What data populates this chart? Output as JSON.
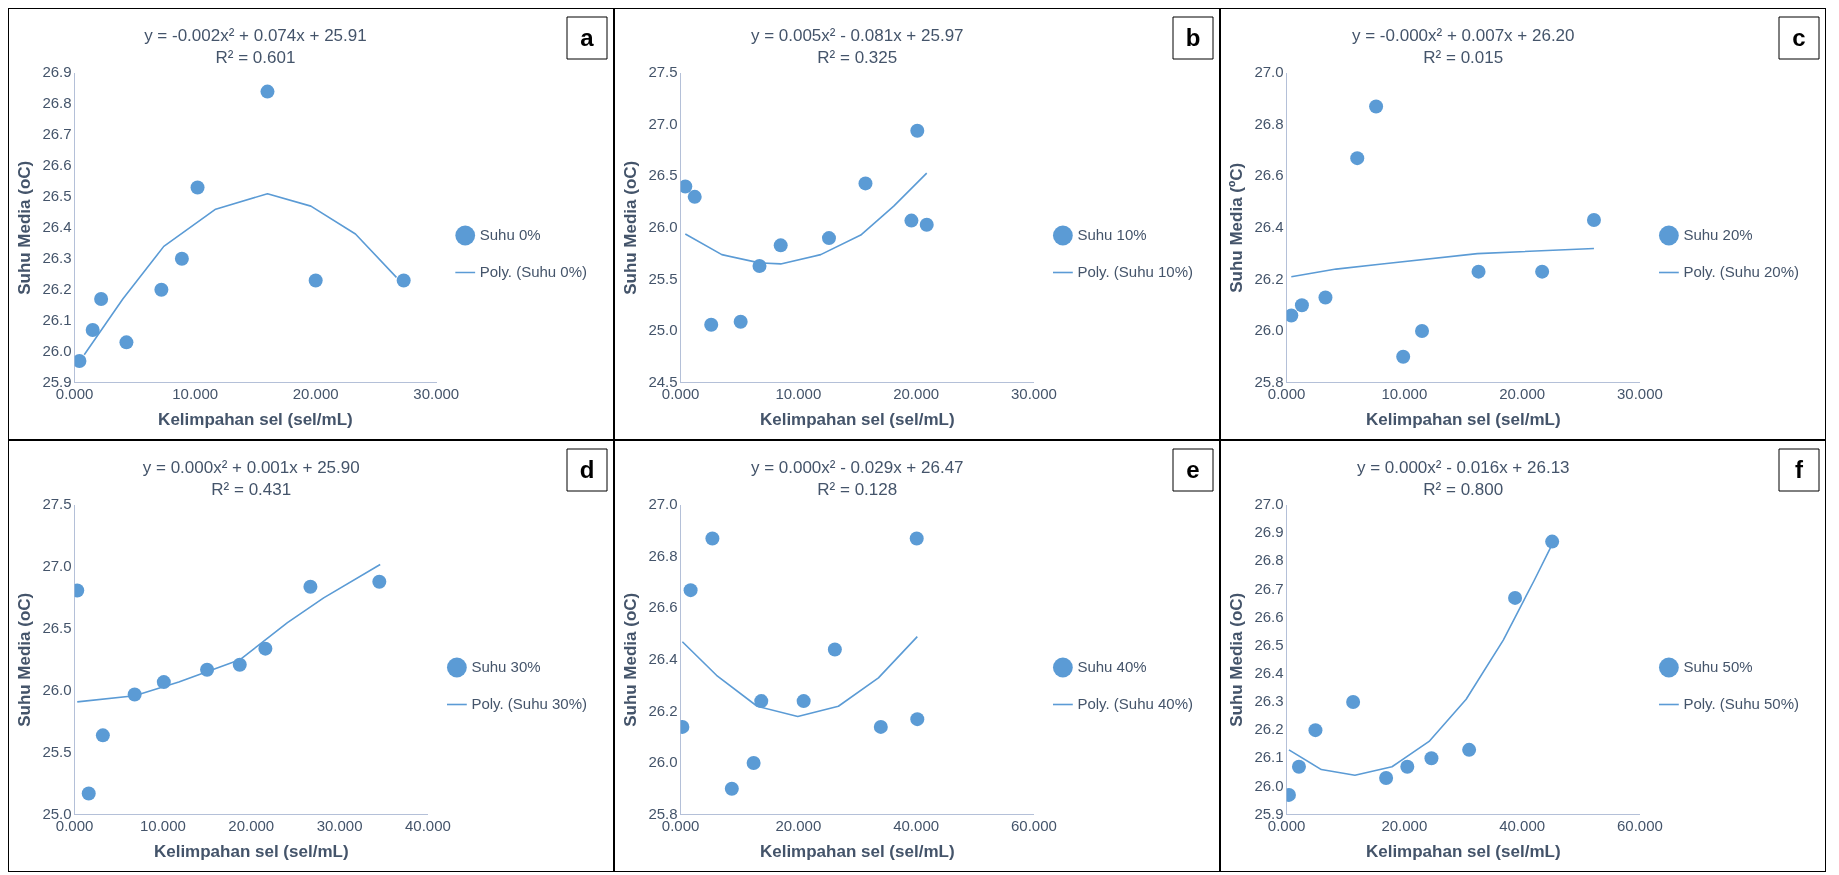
{
  "chart_data": [
    {
      "type": "scatter",
      "xlabel": "Kelimpahan sel (sel/mL)",
      "ylabel": "Suhu Media (oC)",
      "xlim": [
        0,
        30
      ],
      "xticks": [
        {
          "value": 0,
          "label": "0.000"
        },
        {
          "value": 10,
          "label": "10.000"
        },
        {
          "value": 20,
          "label": "20.000"
        },
        {
          "value": 30,
          "label": "30.000"
        }
      ],
      "ylim": [
        25.9,
        26.9
      ],
      "yticks": [
        25.9,
        {
          "value": 26,
          "label": "26.0"
        },
        26.1,
        26.2,
        26.3,
        26.4,
        26.5,
        26.6,
        26.7,
        26.8,
        26.9
      ],
      "legend": "right",
      "grid": false,
      "marker": "circle",
      "annotations": [
        "a",
        "y = -0.002x² + 0.074x + 25.91",
        "R² = 0.601"
      ],
      "series": [
        {
          "name": "Suhu 0%",
          "color": "#5b9bd5",
          "x": [
            0.4,
            1.5,
            2.2,
            4.3,
            7.2,
            8.9,
            10.2,
            16.0,
            20.0,
            27.3
          ],
          "values": [
            25.97,
            26.07,
            26.17,
            26.03,
            26.2,
            26.3,
            26.53,
            26.84,
            26.23,
            26.23
          ]
        },
        {
          "type": "line",
          "name": "Poly. (Suhu 0%)",
          "color": "#5b9bd5",
          "marker": "none",
          "x": [
            0.8,
            4.0,
            7.4,
            11.7,
            16.0,
            19.6,
            23.3,
            26.7
          ],
          "values": [
            25.99,
            26.17,
            26.34,
            26.46,
            26.51,
            26.47,
            26.38,
            26.24
          ]
        }
      ]
    },
    {
      "type": "scatter",
      "xlabel": "Kelimpahan sel (sel/mL)",
      "ylabel": "Suhu Media (oC)",
      "xlim": [
        0,
        30
      ],
      "xticks": [
        {
          "value": 0,
          "label": "0.000"
        },
        {
          "value": 10,
          "label": "10.000"
        },
        {
          "value": 20,
          "label": "20.000"
        },
        {
          "value": 30,
          "label": "30.000"
        }
      ],
      "ylim": [
        24.5,
        27.5
      ],
      "yticks": [
        24.5,
        {
          "value": 25,
          "label": "25.0"
        },
        25.5,
        {
          "value": 26,
          "label": "26.0"
        },
        26.5,
        {
          "value": 27,
          "label": "27.0"
        },
        27.5
      ],
      "legend": "right",
      "grid": false,
      "marker": "circle",
      "annotations": [
        "b",
        "y = 0.005x² - 0.081x + 25.97",
        "R² = 0.325"
      ],
      "series": [
        {
          "name": "Suhu 10%",
          "color": "#5b9bd5",
          "x": [
            0.4,
            1.2,
            2.6,
            5.1,
            6.7,
            8.5,
            12.6,
            15.7,
            19.6,
            20.1,
            20.9
          ],
          "values": [
            26.4,
            26.3,
            25.06,
            25.09,
            25.63,
            25.83,
            25.9,
            26.43,
            26.07,
            26.94,
            26.03
          ]
        },
        {
          "type": "line",
          "name": "Poly. (Suhu 10%)",
          "color": "#5b9bd5",
          "marker": "none",
          "x": [
            0.4,
            3.5,
            6.7,
            8.5,
            11.9,
            15.3,
            18.1,
            20.9
          ],
          "values": [
            25.94,
            25.74,
            25.66,
            25.65,
            25.74,
            25.93,
            26.21,
            26.53
          ]
        }
      ]
    },
    {
      "type": "scatter",
      "xlabel": "Kelimpahan sel (sel/mL)",
      "ylabel": "Suhu Media (ºC)",
      "xlim": [
        0,
        30
      ],
      "xticks": [
        {
          "value": 0,
          "label": "0.000"
        },
        {
          "value": 10,
          "label": "10.000"
        },
        {
          "value": 20,
          "label": "20.000"
        },
        {
          "value": 30,
          "label": "30.000"
        }
      ],
      "ylim": [
        25.8,
        27.0
      ],
      "yticks": [
        25.8,
        {
          "value": 26,
          "label": "26.0"
        },
        26.2,
        26.4,
        26.6,
        26.8,
        {
          "value": 27,
          "label": "27.0"
        }
      ],
      "legend": "right",
      "grid": false,
      "marker": "circle",
      "annotations": [
        "c",
        "y = -0.000x² + 0.007x + 26.20",
        "R² = 0.015"
      ],
      "series": [
        {
          "name": "Suhu 20%",
          "color": "#5b9bd5",
          "x": [
            0.4,
            1.3,
            3.3,
            6.0,
            7.6,
            9.9,
            11.5,
            16.3,
            21.7,
            26.1
          ],
          "values": [
            26.06,
            26.1,
            26.13,
            26.67,
            26.87,
            25.9,
            26.0,
            26.23,
            26.23,
            26.43
          ]
        },
        {
          "type": "line",
          "name": "Poly. (Suhu 20%)",
          "color": "#5b9bd5",
          "marker": "none",
          "x": [
            0.4,
            4.2,
            8.1,
            16.2,
            26.1
          ],
          "values": [
            26.21,
            26.24,
            26.26,
            26.3,
            26.32
          ]
        }
      ]
    },
    {
      "type": "scatter",
      "xlabel": "Kelimpahan sel (sel/mL)",
      "ylabel": "Suhu Media (oC)",
      "xlim": [
        0,
        40
      ],
      "xticks": [
        {
          "value": 0,
          "label": "0.000"
        },
        {
          "value": 10,
          "label": "10.000"
        },
        {
          "value": 20,
          "label": "20.000"
        },
        {
          "value": 30,
          "label": "30.000"
        },
        {
          "value": 40,
          "label": "40.000"
        }
      ],
      "ylim": [
        25.0,
        27.5
      ],
      "yticks": [
        {
          "value": 25,
          "label": "25.0"
        },
        25.5,
        {
          "value": 26,
          "label": "26.0"
        },
        26.5,
        {
          "value": 27,
          "label": "27.0"
        },
        27.5
      ],
      "legend": "right",
      "grid": false,
      "marker": "circle",
      "annotations": [
        "d",
        "y = 0.000x² + 0.001x + 25.90",
        "R² = 0.431"
      ],
      "series": [
        {
          "name": "Suhu 30%",
          "color": "#5b9bd5",
          "x": [
            0.3,
            1.6,
            3.2,
            6.8,
            10.1,
            15.0,
            18.7,
            21.6,
            26.7,
            34.5
          ],
          "values": [
            26.81,
            25.17,
            25.64,
            25.97,
            26.07,
            26.17,
            26.21,
            26.34,
            26.84,
            26.88
          ]
        },
        {
          "type": "line",
          "name": "Poly. (Suhu 30%)",
          "color": "#5b9bd5",
          "marker": "none",
          "x": [
            0.3,
            6.8,
            11.8,
            18.7,
            24.1,
            28.2,
            34.6
          ],
          "values": [
            25.91,
            25.96,
            26.07,
            26.25,
            26.55,
            26.75,
            27.02
          ]
        }
      ]
    },
    {
      "type": "scatter",
      "xlabel": "Kelimpahan sel (sel/mL)",
      "ylabel": "Suhu Media (oC)",
      "xlim": [
        0,
        60
      ],
      "xticks": [
        {
          "value": 0,
          "label": "0.000"
        },
        {
          "value": 20,
          "label": "20.000"
        },
        {
          "value": 40,
          "label": "40.000"
        },
        {
          "value": 60,
          "label": "60.000"
        }
      ],
      "ylim": [
        25.8,
        27.0
      ],
      "yticks": [
        25.8,
        {
          "value": 26,
          "label": "26.0"
        },
        26.2,
        26.4,
        26.6,
        26.8,
        {
          "value": 27,
          "label": "27.0"
        }
      ],
      "legend": "right",
      "grid": false,
      "marker": "circle",
      "annotations": [
        "e",
        "y = 0.000x² - 0.029x + 26.47",
        "R² = 0.128"
      ],
      "series": [
        {
          "name": "Suhu 40%",
          "color": "#5b9bd5",
          "x": [
            0.3,
            1.7,
            5.4,
            8.7,
            12.4,
            13.7,
            20.9,
            26.2,
            34.0,
            40.1,
            40.2
          ],
          "values": [
            26.14,
            26.67,
            26.87,
            25.9,
            26.0,
            26.24,
            26.24,
            26.44,
            26.14,
            26.87,
            26.17
          ]
        },
        {
          "type": "line",
          "name": "Poly. (Suhu 40%)",
          "color": "#5b9bd5",
          "marker": "none",
          "x": [
            0.3,
            6.1,
            13.0,
            19.9,
            26.8,
            33.6,
            40.2
          ],
          "values": [
            26.47,
            26.34,
            26.22,
            26.18,
            26.22,
            26.33,
            26.49
          ]
        }
      ]
    },
    {
      "type": "scatter",
      "xlabel": "Kelimpahan sel (sel/mL)",
      "ylabel": "Suhu Media (oC)",
      "xlim": [
        0,
        60
      ],
      "xticks": [
        {
          "value": 0,
          "label": "0.000"
        },
        {
          "value": 20,
          "label": "20.000"
        },
        {
          "value": 40,
          "label": "40.000"
        },
        {
          "value": 60,
          "label": "60.000"
        }
      ],
      "ylim": [
        25.9,
        27.0
      ],
      "yticks": [
        25.9,
        {
          "value": 26,
          "label": "26.0"
        },
        26.1,
        26.2,
        26.3,
        26.4,
        26.5,
        26.6,
        26.7,
        26.8,
        26.9,
        {
          "value": 27,
          "label": "27.0"
        }
      ],
      "legend": "right",
      "grid": false,
      "marker": "circle",
      "annotations": [
        "f",
        "y = 0.000x² - 0.016x + 26.13",
        "R² = 0.800"
      ],
      "series": [
        {
          "name": "Suhu 50%",
          "color": "#5b9bd5",
          "x": [
            0.4,
            2.1,
            4.9,
            11.3,
            16.9,
            20.5,
            24.6,
            31.0,
            38.8,
            45.1
          ],
          "values": [
            25.97,
            26.07,
            26.2,
            26.3,
            26.03,
            26.07,
            26.1,
            26.13,
            26.67,
            26.87
          ]
        },
        {
          "type": "line",
          "name": "Poly. (Suhu 50%)",
          "color": "#5b9bd5",
          "marker": "none",
          "x": [
            0.4,
            5.9,
            11.6,
            17.9,
            24.2,
            30.5,
            36.8,
            42.0,
            45.1
          ],
          "values": [
            26.13,
            26.06,
            26.04,
            26.07,
            26.16,
            26.31,
            26.52,
            26.73,
            26.86
          ]
        }
      ]
    }
  ]
}
